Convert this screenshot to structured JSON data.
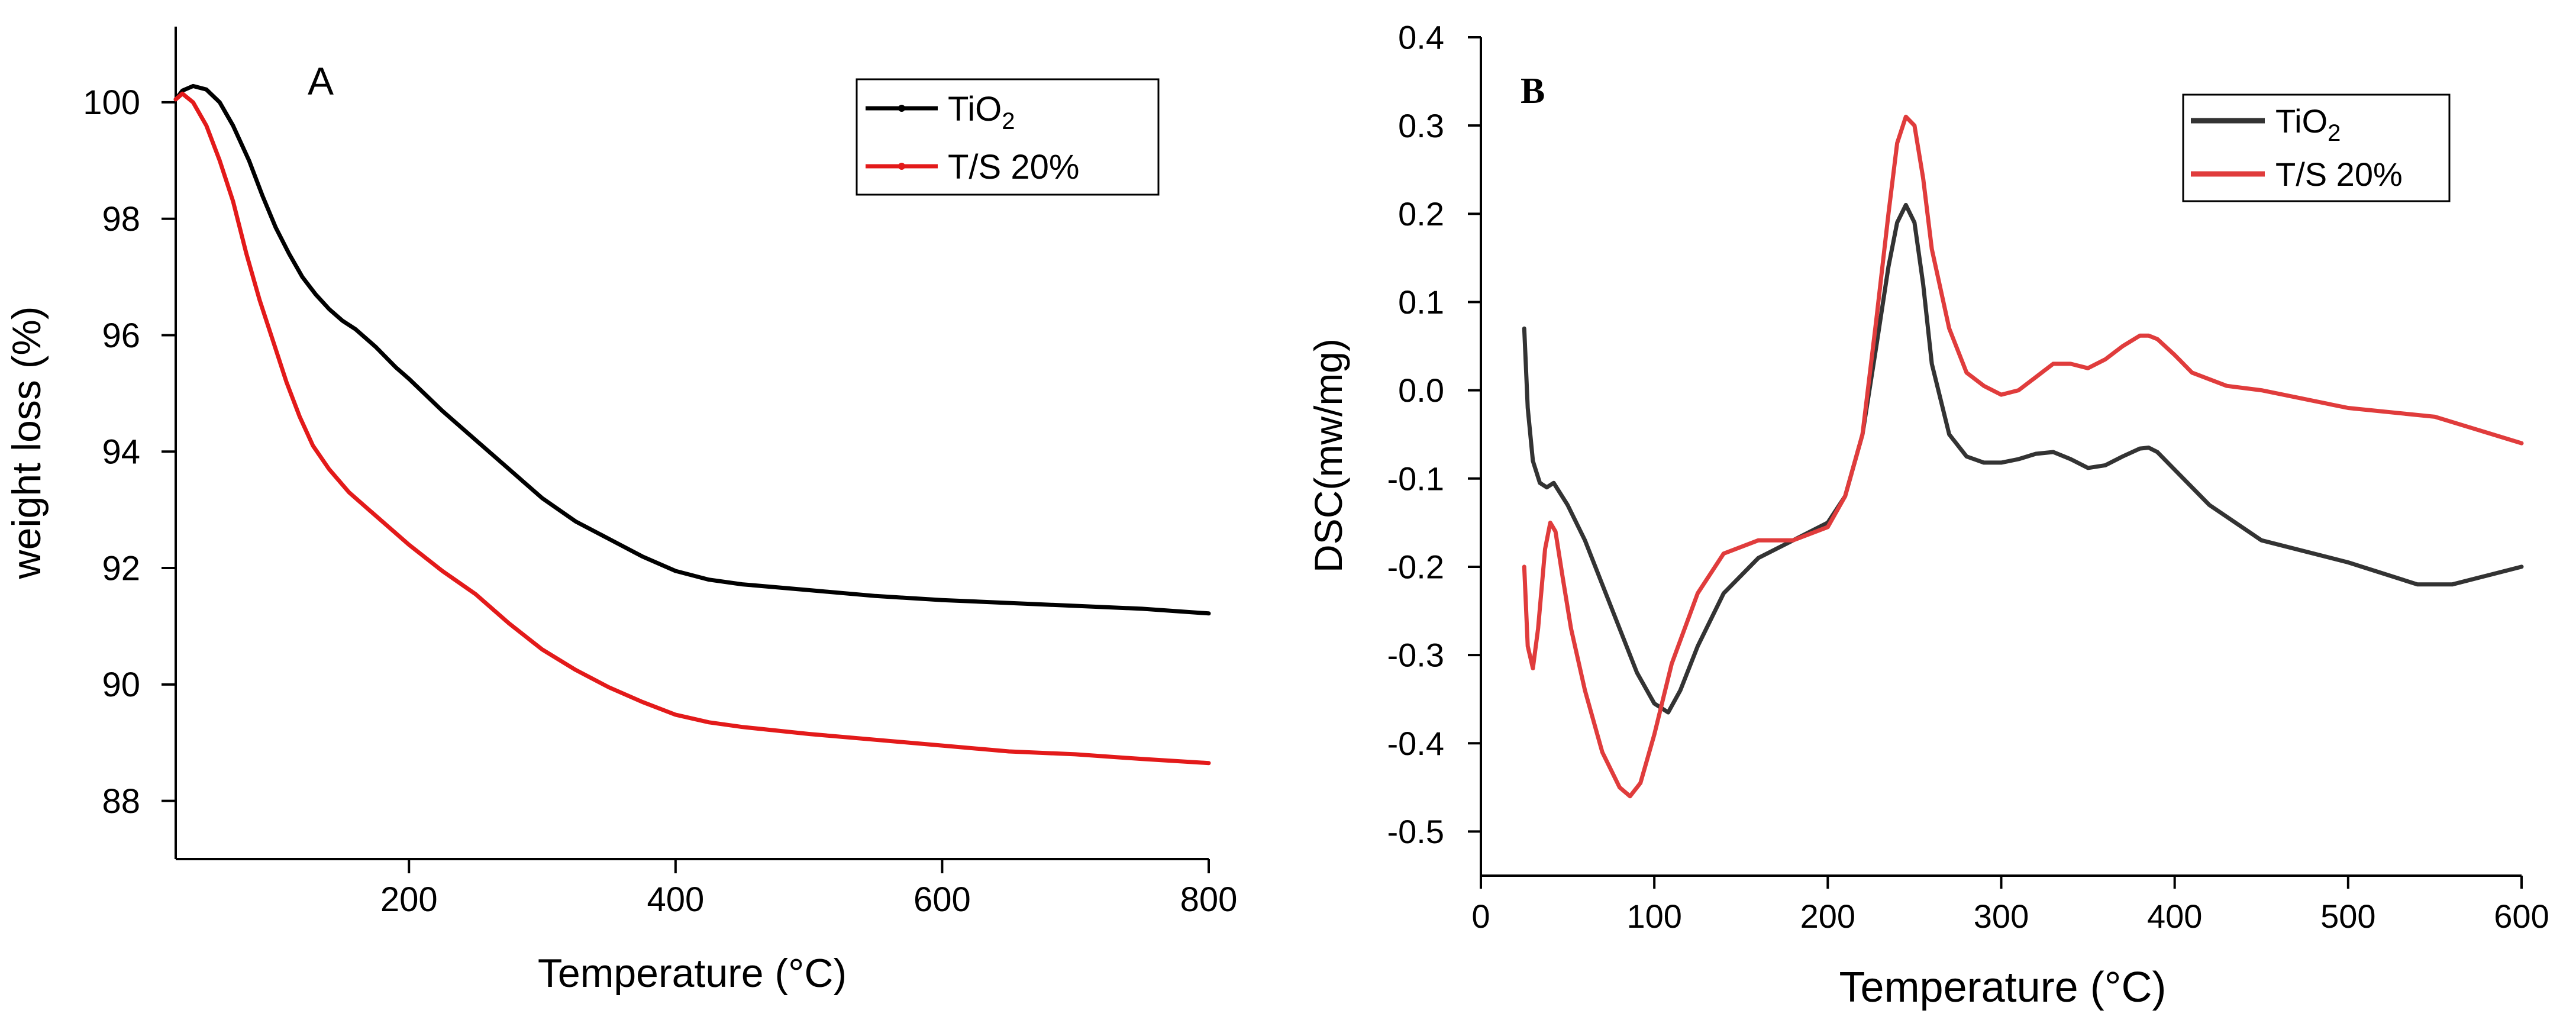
{
  "chart_data": [
    {
      "type": "line",
      "panel_label": "A",
      "xlabel": "Temperature (°C)",
      "ylabel": "weight loss (%)",
      "xlim": [
        25,
        800
      ],
      "ylim": [
        87,
        101.3
      ],
      "xticks": [
        200,
        400,
        600,
        800
      ],
      "yticks": [
        88,
        90,
        92,
        94,
        96,
        98,
        100
      ],
      "legend_position": "top-right",
      "series": [
        {
          "name": "TiO2",
          "legend": {
            "base": "TiO",
            "sub": "2"
          },
          "color": "#000000",
          "x": [
            25,
            30,
            38,
            48,
            58,
            68,
            80,
            90,
            100,
            110,
            120,
            130,
            140,
            150,
            160,
            175,
            190,
            200,
            225,
            250,
            275,
            300,
            325,
            350,
            375,
            400,
            425,
            450,
            500,
            550,
            600,
            650,
            700,
            750,
            800
          ],
          "y": [
            100.05,
            100.2,
            100.28,
            100.22,
            100.0,
            99.6,
            99.0,
            98.4,
            97.85,
            97.4,
            97.0,
            96.7,
            96.45,
            96.25,
            96.1,
            95.8,
            95.45,
            95.25,
            94.7,
            94.2,
            93.7,
            93.2,
            92.8,
            92.5,
            92.2,
            91.95,
            91.8,
            91.72,
            91.62,
            91.52,
            91.45,
            91.4,
            91.35,
            91.3,
            91.22
          ]
        },
        {
          "name": "T/S 20%",
          "legend": {
            "base": "T/S 20%",
            "sub": ""
          },
          "color": "#e31a1a",
          "x": [
            25,
            30,
            38,
            48,
            58,
            68,
            78,
            88,
            98,
            108,
            118,
            128,
            140,
            155,
            170,
            185,
            200,
            225,
            250,
            275,
            300,
            325,
            350,
            375,
            400,
            425,
            450,
            500,
            550,
            600,
            650,
            700,
            750,
            800
          ],
          "y": [
            100.05,
            100.15,
            100.0,
            99.6,
            99.0,
            98.3,
            97.4,
            96.6,
            95.9,
            95.2,
            94.6,
            94.1,
            93.7,
            93.3,
            93.0,
            92.7,
            92.4,
            91.95,
            91.55,
            91.05,
            90.6,
            90.25,
            89.95,
            89.7,
            89.48,
            89.35,
            89.27,
            89.15,
            89.05,
            88.95,
            88.85,
            88.8,
            88.72,
            88.65
          ]
        }
      ]
    },
    {
      "type": "line",
      "panel_label": "B",
      "xlabel": "Temperature (°C)",
      "ylabel": "DSC(mw/mg)",
      "xlim": [
        0,
        600
      ],
      "ylim": [
        -0.55,
        0.4
      ],
      "xticks": [
        0,
        100,
        200,
        300,
        400,
        500,
        600
      ],
      "yticks": [
        -0.5,
        -0.4,
        -0.3,
        -0.2,
        -0.1,
        0.0,
        0.1,
        0.2,
        0.3,
        0.4
      ],
      "ytick_labels": [
        "-0.5",
        "-0.4",
        "-0.3",
        "-0.2",
        "-0.1",
        "0.0",
        "0.1",
        "0.2",
        "0.3",
        "0.4"
      ],
      "legend_position": "top-right",
      "series": [
        {
          "name": "TiO2",
          "legend": {
            "base": "TiO",
            "sub": "2"
          },
          "color": "#333333",
          "x": [
            25,
            27,
            30,
            34,
            38,
            42,
            50,
            60,
            70,
            80,
            90,
            100,
            108,
            115,
            125,
            140,
            160,
            180,
            200,
            210,
            220,
            228,
            235,
            240,
            245,
            250,
            255,
            260,
            270,
            280,
            290,
            300,
            310,
            320,
            330,
            340,
            350,
            360,
            370,
            380,
            385,
            390,
            400,
            420,
            450,
            500,
            540,
            560,
            580,
            600
          ],
          "y": [
            0.07,
            -0.02,
            -0.08,
            -0.105,
            -0.11,
            -0.105,
            -0.13,
            -0.17,
            -0.22,
            -0.27,
            -0.32,
            -0.355,
            -0.365,
            -0.34,
            -0.29,
            -0.23,
            -0.19,
            -0.17,
            -0.15,
            -0.12,
            -0.05,
            0.05,
            0.14,
            0.19,
            0.21,
            0.19,
            0.12,
            0.03,
            -0.05,
            -0.075,
            -0.082,
            -0.082,
            -0.078,
            -0.072,
            -0.07,
            -0.078,
            -0.088,
            -0.085,
            -0.075,
            -0.066,
            -0.065,
            -0.07,
            -0.09,
            -0.13,
            -0.17,
            -0.195,
            -0.22,
            -0.22,
            -0.21,
            -0.2
          ]
        },
        {
          "name": "T/S 20%",
          "legend": {
            "base": "T/S 20%",
            "sub": ""
          },
          "color": "#e03c3c",
          "x": [
            25,
            27,
            30,
            33,
            37,
            40,
            43,
            47,
            52,
            60,
            70,
            80,
            86,
            92,
            100,
            110,
            125,
            140,
            160,
            180,
            200,
            210,
            220,
            228,
            235,
            240,
            245,
            250,
            255,
            260,
            270,
            280,
            290,
            300,
            310,
            320,
            330,
            340,
            350,
            360,
            370,
            380,
            385,
            390,
            400,
            410,
            430,
            450,
            500,
            550,
            600
          ],
          "y": [
            -0.2,
            -0.29,
            -0.315,
            -0.27,
            -0.18,
            -0.15,
            -0.16,
            -0.21,
            -0.27,
            -0.34,
            -0.41,
            -0.45,
            -0.46,
            -0.445,
            -0.39,
            -0.31,
            -0.23,
            -0.185,
            -0.17,
            -0.17,
            -0.155,
            -0.12,
            -0.05,
            0.08,
            0.2,
            0.28,
            0.31,
            0.3,
            0.24,
            0.16,
            0.07,
            0.02,
            0.005,
            -0.005,
            0.0,
            0.015,
            0.03,
            0.03,
            0.025,
            0.035,
            0.05,
            0.062,
            0.062,
            0.058,
            0.04,
            0.02,
            0.005,
            0.0,
            -0.02,
            -0.03,
            -0.06
          ]
        }
      ]
    }
  ]
}
